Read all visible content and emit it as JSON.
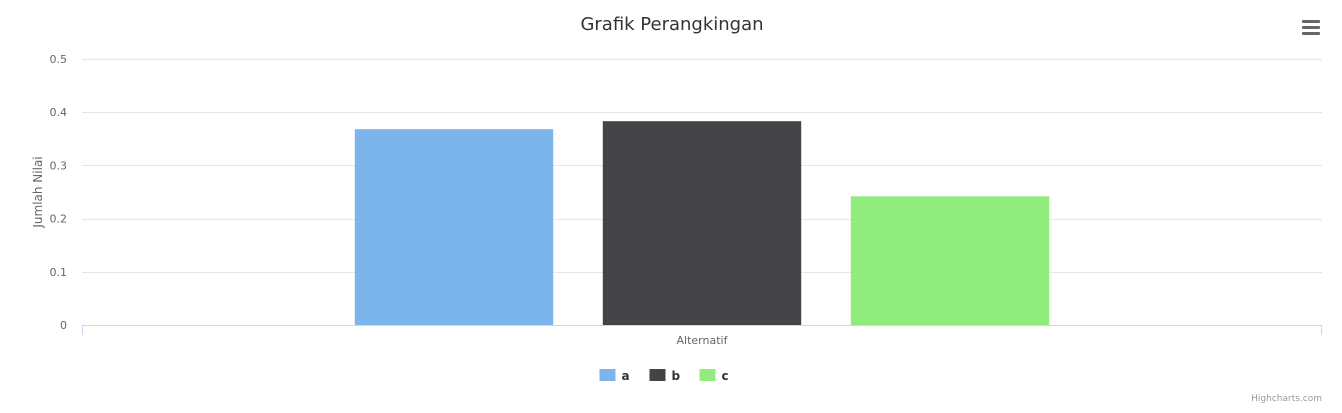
{
  "chart_data": {
    "type": "bar",
    "title": "Grafik Perangkingan",
    "categories": [
      "Alternatif"
    ],
    "ylabel": "Jumlah Nilai",
    "xlabel": "",
    "ylim": [
      0,
      0.5
    ],
    "yticks": [
      "0",
      "0.1",
      "0.2",
      "0.3",
      "0.4",
      "0.5"
    ],
    "grid": true,
    "legend_position": "bottom-center",
    "series": [
      {
        "name": "a",
        "values": [
          0.368
        ],
        "color": "#7cb5ec"
      },
      {
        "name": "b",
        "values": [
          0.383
        ],
        "color": "#434348"
      },
      {
        "name": "c",
        "values": [
          0.242
        ],
        "color": "#90ed7d"
      }
    ]
  },
  "credits": "Highcharts.com",
  "menu_icon": "hamburger-menu-icon"
}
